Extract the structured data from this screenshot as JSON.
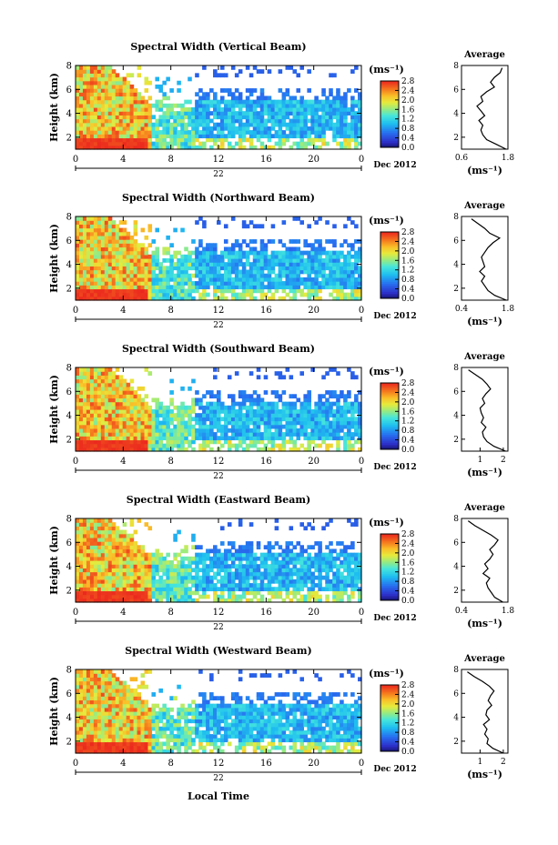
{
  "figure": {
    "xlabel_bottom": "Local Time",
    "date_label": "Dec 2012",
    "day_label": "22",
    "colorbar_unit": "(ms⁻¹)",
    "avg_title": "Average",
    "avg_xlabel": "(ms⁻¹)",
    "ylabel": "Height (km)"
  },
  "chart_data": [
    {
      "type": "heatmap",
      "title": "Spectral Width (Vertical Beam)",
      "x_ticks": [
        "0",
        "4",
        "8",
        "12",
        "16",
        "20",
        "0"
      ],
      "y_ticks": [
        "2",
        "4",
        "6",
        "8"
      ],
      "xlim": [
        0,
        24
      ],
      "ylim": [
        1,
        8
      ],
      "colorbar": {
        "ticks": [
          "0.0",
          "0.4",
          "0.8",
          "1.2",
          "1.6",
          "2.0",
          "2.4",
          "2.8"
        ],
        "range": [
          0.0,
          2.8
        ]
      },
      "average_profile": {
        "title": "Average",
        "x_ticks": [
          "0.6",
          "1.8"
        ],
        "xlim": [
          0.6,
          1.8
        ],
        "y_ticks": [
          "2",
          "4",
          "6",
          "8"
        ],
        "ylim": [
          1,
          8
        ],
        "height_km": [
          1.0,
          1.4,
          1.8,
          2.2,
          2.6,
          3.0,
          3.4,
          3.8,
          4.2,
          4.6,
          5.0,
          5.4,
          5.8,
          6.2,
          6.6,
          7.0,
          7.4,
          7.8
        ],
        "width": [
          1.75,
          1.5,
          1.25,
          1.15,
          1.1,
          1.15,
          1.05,
          1.2,
          1.1,
          1.0,
          1.15,
          1.1,
          1.25,
          1.45,
          1.35,
          1.45,
          1.6,
          1.65
        ]
      }
    },
    {
      "type": "heatmap",
      "title": "Spectral Width (Northward Beam)",
      "x_ticks": [
        "0",
        "4",
        "8",
        "12",
        "16",
        "20",
        "0"
      ],
      "y_ticks": [
        "2",
        "4",
        "6",
        "8"
      ],
      "xlim": [
        0,
        24
      ],
      "ylim": [
        1,
        8
      ],
      "colorbar": {
        "ticks": [
          "0.0",
          "0.4",
          "0.8",
          "1.2",
          "1.6",
          "2.0",
          "2.4",
          "2.8"
        ],
        "range": [
          0.0,
          2.8
        ]
      },
      "average_profile": {
        "title": "Average",
        "x_ticks": [
          "0.4",
          "1.8"
        ],
        "xlim": [
          0.4,
          1.8
        ],
        "y_ticks": [
          "2",
          "4",
          "6",
          "8"
        ],
        "ylim": [
          1,
          8
        ],
        "height_km": [
          1.0,
          1.4,
          1.8,
          2.2,
          2.6,
          3.0,
          3.4,
          3.8,
          4.2,
          4.6,
          5.0,
          5.4,
          5.8,
          6.2,
          6.6,
          7.0,
          7.4,
          7.8
        ],
        "width": [
          1.75,
          1.4,
          1.2,
          1.1,
          1.0,
          1.1,
          0.95,
          1.1,
          1.05,
          1.0,
          1.1,
          1.2,
          1.35,
          1.55,
          1.25,
          1.1,
          0.9,
          0.7
        ]
      }
    },
    {
      "type": "heatmap",
      "title": "Spectral Width (Southward Beam)",
      "x_ticks": [
        "0",
        "4",
        "8",
        "12",
        "16",
        "20",
        "0"
      ],
      "y_ticks": [
        "2",
        "4",
        "6",
        "8"
      ],
      "xlim": [
        0,
        24
      ],
      "ylim": [
        1,
        8
      ],
      "colorbar": {
        "ticks": [
          "0.0",
          "0.4",
          "0.8",
          "1.2",
          "1.6",
          "2.0",
          "2.4",
          "2.8"
        ],
        "range": [
          0.0,
          2.8
        ]
      },
      "average_profile": {
        "title": "Average",
        "x_ticks": [
          "1",
          "2"
        ],
        "xlim": [
          0.2,
          2.2
        ],
        "y_ticks": [
          "2",
          "4",
          "6",
          "8"
        ],
        "ylim": [
          1,
          8
        ],
        "height_km": [
          1.0,
          1.4,
          1.8,
          2.2,
          2.6,
          3.0,
          3.4,
          3.8,
          4.2,
          4.6,
          5.0,
          5.4,
          5.8,
          6.2,
          6.6,
          7.0,
          7.4,
          7.8
        ],
        "width": [
          2.1,
          1.6,
          1.3,
          1.15,
          1.1,
          1.25,
          1.05,
          1.15,
          1.05,
          1.0,
          1.2,
          1.1,
          1.25,
          1.45,
          1.3,
          1.1,
          0.8,
          0.5
        ]
      }
    },
    {
      "type": "heatmap",
      "title": "Spectral Width (Eastward Beam)",
      "x_ticks": [
        "0",
        "4",
        "8",
        "12",
        "16",
        "20",
        "0"
      ],
      "y_ticks": [
        "2",
        "4",
        "6",
        "8"
      ],
      "xlim": [
        0,
        24
      ],
      "ylim": [
        1,
        8
      ],
      "colorbar": {
        "ticks": [
          "0.0",
          "0.4",
          "0.8",
          "1.2",
          "1.6",
          "2.0",
          "2.4",
          "2.8"
        ],
        "range": [
          0.0,
          2.8
        ]
      },
      "average_profile": {
        "title": "Average",
        "x_ticks": [
          "0.4",
          "1.8"
        ],
        "xlim": [
          0.4,
          1.8
        ],
        "y_ticks": [
          "2",
          "4",
          "6",
          "8"
        ],
        "ylim": [
          1,
          8
        ],
        "height_km": [
          1.0,
          1.4,
          1.8,
          2.2,
          2.6,
          3.0,
          3.4,
          3.8,
          4.2,
          4.6,
          5.0,
          5.4,
          5.8,
          6.2,
          6.6,
          7.0,
          7.4,
          7.8
        ],
        "width": [
          1.65,
          1.4,
          1.3,
          1.2,
          1.15,
          1.25,
          1.05,
          1.2,
          1.1,
          1.25,
          1.35,
          1.25,
          1.4,
          1.5,
          1.3,
          1.05,
          0.8,
          0.6
        ]
      }
    },
    {
      "type": "heatmap",
      "title": "Spectral Width (Westward Beam)",
      "x_ticks": [
        "0",
        "4",
        "8",
        "12",
        "16",
        "20",
        "0"
      ],
      "y_ticks": [
        "2",
        "4",
        "6",
        "8"
      ],
      "xlim": [
        0,
        24
      ],
      "ylim": [
        1,
        8
      ],
      "colorbar": {
        "ticks": [
          "0.0",
          "0.4",
          "0.8",
          "1.2",
          "1.6",
          "2.0",
          "2.4",
          "2.8"
        ],
        "range": [
          0.0,
          2.8
        ]
      },
      "average_profile": {
        "title": "Average",
        "x_ticks": [
          "1",
          "2"
        ],
        "xlim": [
          0.2,
          2.2
        ],
        "y_ticks": [
          "2",
          "4",
          "6",
          "8"
        ],
        "ylim": [
          1,
          8
        ],
        "height_km": [
          1.0,
          1.4,
          1.8,
          2.2,
          2.6,
          3.0,
          3.4,
          3.8,
          4.2,
          4.6,
          5.0,
          5.4,
          5.8,
          6.2,
          6.6,
          7.0,
          7.4,
          7.8
        ],
        "width": [
          2.0,
          1.55,
          1.3,
          1.35,
          1.2,
          1.3,
          1.15,
          1.4,
          1.25,
          1.3,
          1.5,
          1.35,
          1.45,
          1.6,
          1.4,
          1.1,
          0.75,
          0.45
        ]
      }
    }
  ]
}
